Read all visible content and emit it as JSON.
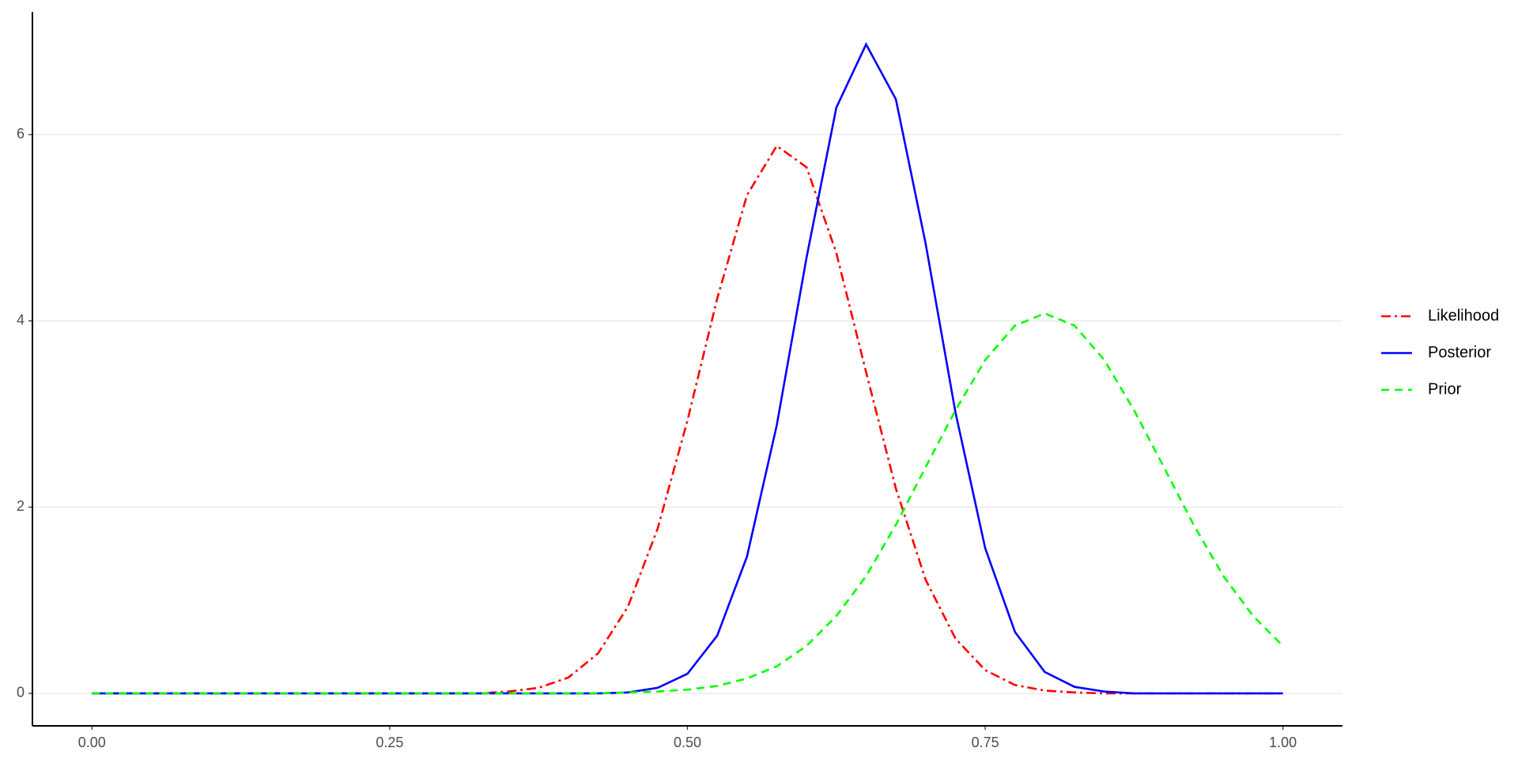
{
  "chart_data": {
    "type": "line",
    "x": [
      0,
      0.025,
      0.05,
      0.075,
      0.1,
      0.125,
      0.15,
      0.175,
      0.2,
      0.225,
      0.25,
      0.275,
      0.3,
      0.325,
      0.35,
      0.375,
      0.4,
      0.425,
      0.45,
      0.475,
      0.5,
      0.525,
      0.55,
      0.575,
      0.6,
      0.625,
      0.65,
      0.675,
      0.7,
      0.725,
      0.75,
      0.775,
      0.8,
      0.825,
      0.85,
      0.875,
      0.9,
      0.925,
      0.95,
      0.975,
      1
    ],
    "series": [
      {
        "name": "Likelihood",
        "color": "#ff0000",
        "dash": "dashdot",
        "values": [
          0,
          0,
          0,
          0,
          0,
          0,
          0,
          0,
          0,
          0,
          0,
          0,
          0,
          0,
          0.02,
          0.06,
          0.17,
          0.43,
          0.93,
          1.77,
          2.93,
          4.24,
          5.35,
          5.88,
          5.65,
          4.73,
          3.45,
          2.2,
          1.22,
          0.59,
          0.25,
          0.09,
          0.03,
          0.01,
          0,
          0,
          0,
          0,
          0,
          0,
          0
        ]
      },
      {
        "name": "Posterior",
        "color": "#0000ff",
        "dash": "solid",
        "values": [
          0,
          0,
          0,
          0,
          0,
          0,
          0,
          0,
          0,
          0,
          0,
          0,
          0,
          0,
          0,
          0,
          0,
          0,
          0.01,
          0.06,
          0.21,
          0.62,
          1.47,
          2.88,
          4.68,
          6.29,
          6.97,
          6.38,
          4.83,
          3.02,
          1.56,
          0.66,
          0.23,
          0.07,
          0.02,
          0,
          0,
          0,
          0,
          0,
          0
        ]
      },
      {
        "name": "Prior",
        "color": "#00ff00",
        "dash": "dashed",
        "values": [
          0,
          0,
          0,
          0,
          0,
          0,
          0,
          0,
          0,
          0,
          0,
          0,
          0,
          0,
          0,
          0,
          0,
          0,
          0.01,
          0.02,
          0.04,
          0.08,
          0.16,
          0.29,
          0.51,
          0.83,
          1.26,
          1.81,
          2.43,
          3.04,
          3.58,
          3.95,
          4.08,
          3.95,
          3.58,
          3.04,
          2.43,
          1.81,
          1.26,
          0.83,
          0.51
        ]
      }
    ],
    "xlim": [
      -0.05,
      1.05
    ],
    "xticks": [
      {
        "value": 0,
        "label": "0.00"
      },
      {
        "value": 0.25,
        "label": "0.25"
      },
      {
        "value": 0.5,
        "label": "0.50"
      },
      {
        "value": 0.75,
        "label": "0.75"
      },
      {
        "value": 1,
        "label": "1.00"
      }
    ],
    "ylim": [
      -0.3485,
      7.3185
    ],
    "yticks": [
      0,
      2,
      4,
      6
    ],
    "grid": true,
    "legend": "right"
  }
}
